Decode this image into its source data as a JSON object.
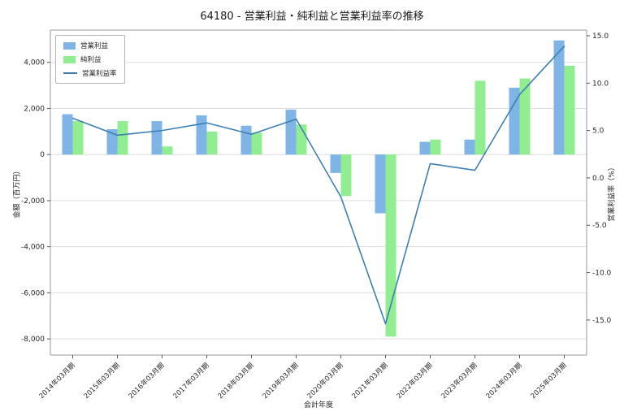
{
  "chart_data": {
    "type": "bar+line",
    "title": "64180 - 営業利益・純利益と営業利益率の推移",
    "xlabel": "会計年度",
    "ylabel_left": "金額（百万円）",
    "ylabel_right": "営業利益率（%）",
    "grid": "horizontal",
    "legend_position": "upper-left",
    "categories": [
      "2014年03月期",
      "2015年03月期",
      "2016年03月期",
      "2017年03月期",
      "2018年03月期",
      "2019年03月期",
      "2020年03月期",
      "2021年03月期",
      "2022年03月期",
      "2023年03月期",
      "2024年03月期",
      "2025年03月期"
    ],
    "series": [
      {
        "name": "営業利益",
        "type": "bar",
        "axis": "left",
        "color": "#7fb5e6",
        "values": [
          1750,
          1100,
          1450,
          1700,
          1250,
          1950,
          -800,
          -2550,
          550,
          650,
          2900,
          4950
        ]
      },
      {
        "name": "純利益",
        "type": "bar",
        "axis": "left",
        "color": "#90ee90",
        "values": [
          1450,
          1450,
          350,
          1000,
          950,
          1300,
          -1800,
          -7900,
          650,
          3200,
          3300,
          3850
        ]
      },
      {
        "name": "営業利益率",
        "type": "line",
        "axis": "right",
        "color": "#3d7fb2",
        "values": [
          6.3,
          4.5,
          5.0,
          5.8,
          4.6,
          6.2,
          -2.0,
          -15.4,
          1.5,
          0.8,
          8.8,
          13.9
        ]
      }
    ],
    "left_axis": {
      "min": -8700,
      "max": 5400,
      "ticks": [
        4000,
        2000,
        0,
        -2000,
        -4000,
        -6000,
        -8000
      ],
      "tick_labels": [
        "4,000",
        "2,000",
        "0",
        "-2,000",
        "-4,000",
        "-6,000",
        "-8,000"
      ]
    },
    "right_axis": {
      "min": -18.7,
      "max": 15.6,
      "ticks": [
        15,
        10,
        5,
        0,
        -5,
        -10,
        -15
      ],
      "tick_labels": [
        "15.0",
        "10.0",
        "5.0",
        "0.0",
        "-5.0",
        "-10.0",
        "-15.0"
      ]
    }
  }
}
